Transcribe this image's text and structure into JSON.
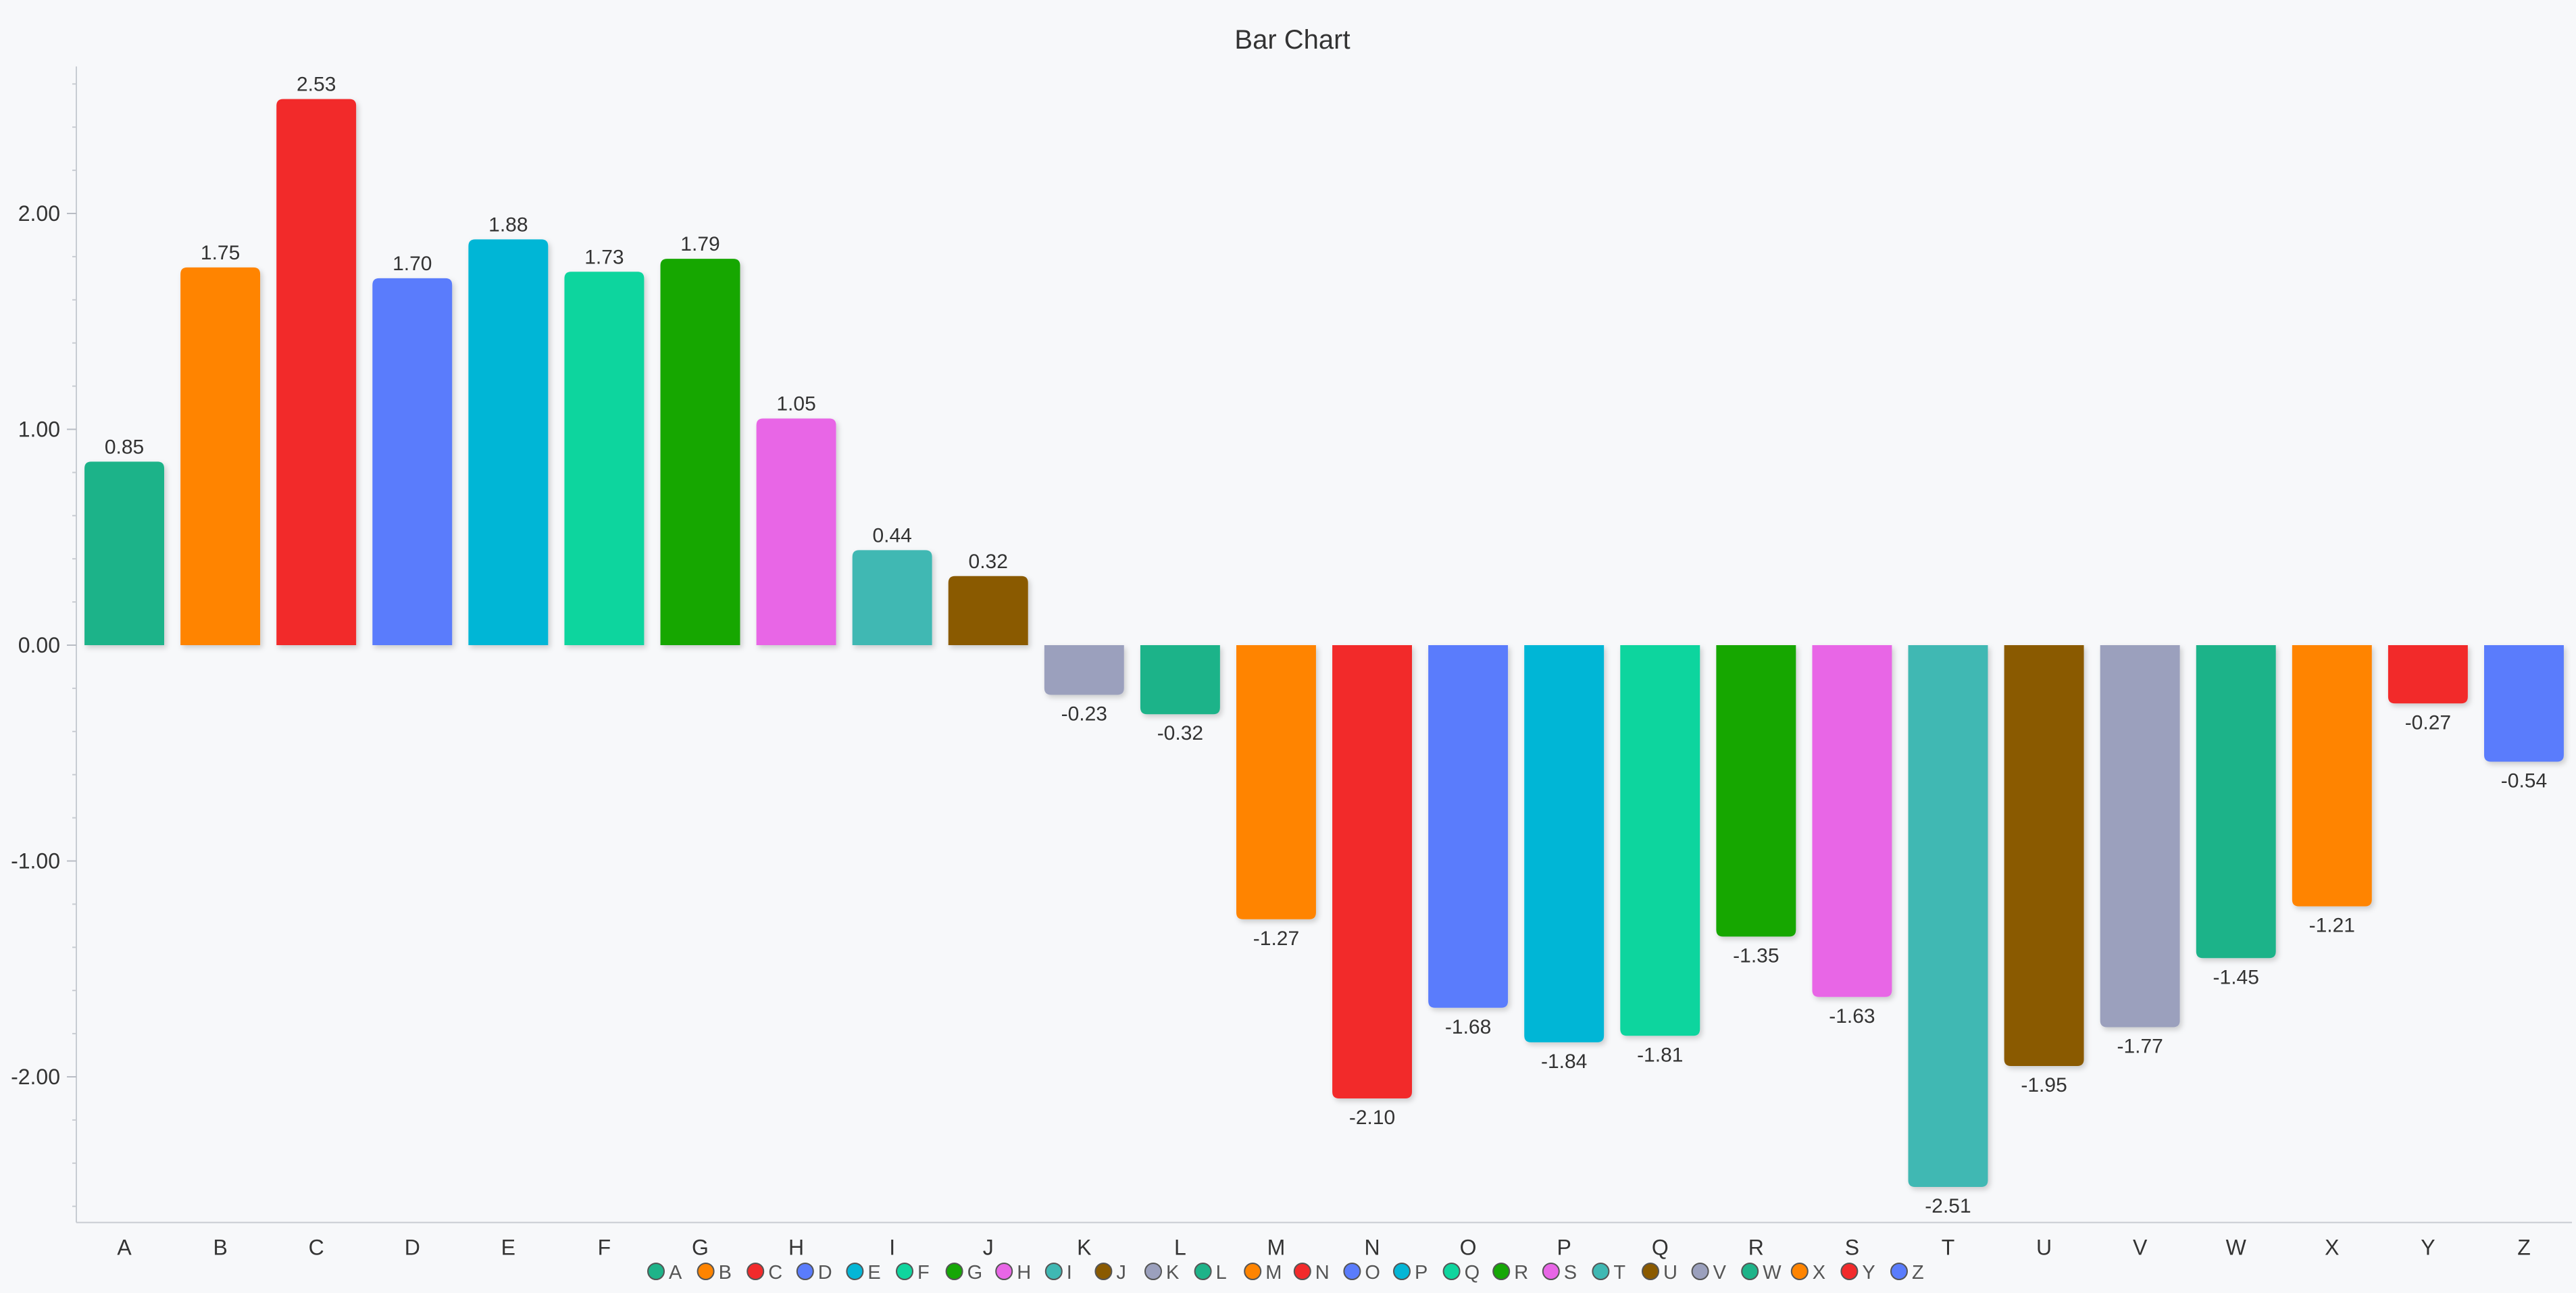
{
  "chart_data": {
    "type": "bar",
    "title": "Bar Chart",
    "xlabel": "",
    "ylabel": "",
    "ylim": [
      -2.65,
      2.65
    ],
    "yticks": [
      -2,
      -1,
      0,
      1,
      2
    ],
    "ytick_labels": [
      "-2.00",
      "-1.00",
      "0.00",
      "1.00",
      "2.00"
    ],
    "grid": false,
    "legend_position": "bottom",
    "categories": [
      "A",
      "B",
      "C",
      "D",
      "E",
      "F",
      "G",
      "H",
      "I",
      "J",
      "K",
      "L",
      "M",
      "N",
      "O",
      "P",
      "Q",
      "R",
      "S",
      "T",
      "U",
      "V",
      "W",
      "X",
      "Y",
      "Z"
    ],
    "values": [
      0.85,
      1.75,
      2.53,
      1.7,
      1.88,
      1.73,
      1.79,
      1.05,
      0.44,
      0.32,
      -0.23,
      -0.32,
      -1.27,
      -2.1,
      -1.68,
      -1.84,
      -1.81,
      -1.35,
      -1.63,
      -2.51,
      -1.95,
      -1.77,
      -1.45,
      -1.21,
      -0.27,
      -0.54
    ],
    "value_labels": [
      "0.85",
      "1.75",
      "2.53",
      "1.70",
      "1.88",
      "1.73",
      "1.79",
      "1.05",
      "0.44",
      "0.32",
      "-0.23",
      "-0.32",
      "-1.27",
      "-2.10",
      "-1.68",
      "-1.84",
      "-1.81",
      "-1.35",
      "-1.63",
      "-2.51",
      "-1.95",
      "-1.77",
      "-1.45",
      "-1.21",
      "-0.27",
      "-0.54"
    ],
    "colors": [
      "#1eb389",
      "#ff8400",
      "#f22a2b",
      "#5a7cfc",
      "#04b6d6",
      "#0fd59e",
      "#16a706",
      "#e866e6",
      "#3fb8b3",
      "#8a5a00",
      "#9ba0bd",
      "#1eb389",
      "#ff8400",
      "#f22a2b",
      "#5a7cfc",
      "#04b6d6",
      "#0fd59e",
      "#16a706",
      "#e866e6",
      "#3fb8b3",
      "#8a5a00",
      "#9ba0bd",
      "#1eb389",
      "#ff8400",
      "#f22a2b",
      "#5a7cfc"
    ]
  }
}
